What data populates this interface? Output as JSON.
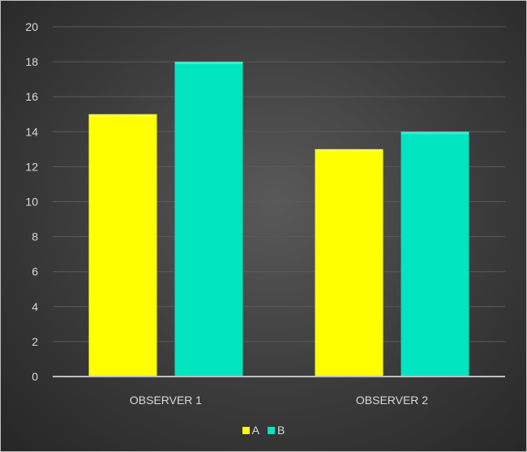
{
  "colors": {
    "background": "#404040",
    "gridline": "#5a5a5a",
    "axis_line": "#bfbfbf",
    "text": "#d9d9d9"
  },
  "chart_data": {
    "type": "bar",
    "title": "",
    "xlabel": "",
    "ylabel": "",
    "categories": [
      "OBSERVER 1",
      "OBSERVER 2"
    ],
    "series": [
      {
        "name": "A",
        "color": "#ffff00",
        "values": [
          15,
          13
        ]
      },
      {
        "name": "B",
        "color": "#00e5c0",
        "values": [
          18,
          14
        ]
      }
    ],
    "ylim": [
      0,
      20
    ],
    "yticks": [
      0,
      2,
      4,
      6,
      8,
      10,
      12,
      14,
      16,
      18,
      20
    ],
    "grid": true,
    "legend": "bottom"
  }
}
